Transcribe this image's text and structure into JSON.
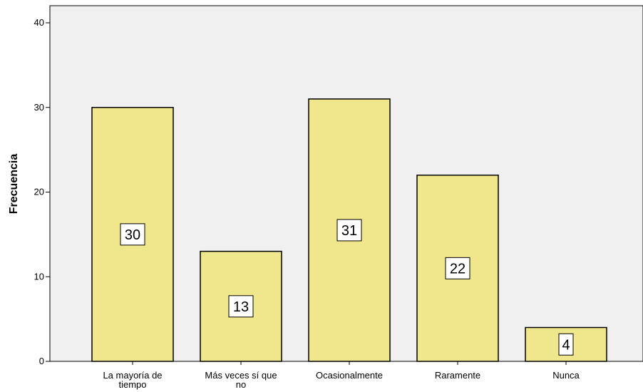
{
  "chart_data": {
    "type": "bar",
    "categories": [
      [
        "La mayoría de",
        "tiempo"
      ],
      [
        "Más veces sí que",
        "no"
      ],
      [
        "Ocasionalmente"
      ],
      [
        "Raramente"
      ],
      [
        "Nunca"
      ]
    ],
    "values": [
      30,
      13,
      31,
      22,
      4
    ],
    "data_labels": [
      "30",
      "13",
      "31",
      "22",
      "4"
    ],
    "title": "",
    "xlabel": "",
    "ylabel": "Frecuencia",
    "ylim": [
      0,
      40
    ],
    "yticks": [
      0,
      10,
      20,
      30,
      40
    ],
    "grid": false,
    "colors": {
      "bar_fill": "#f0e68c",
      "bar_stroke": "#000000",
      "plot_background": "#f0f0f0",
      "label_box_fill": "#ffffff"
    }
  }
}
